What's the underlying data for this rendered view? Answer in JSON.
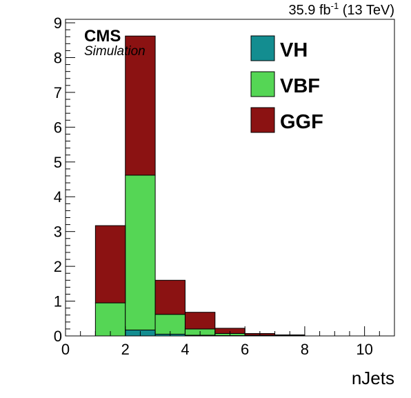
{
  "header": {
    "lumi_main": "35.9 fb",
    "lumi_sup": "-1",
    "lumi_tail": " (13 TeV)"
  },
  "labels": {
    "cms": "CMS",
    "simulation": "Simulation"
  },
  "colors": {
    "VH": "#138d90",
    "VBF": "#55d655",
    "GGF": "#8b1212",
    "frame": "#000000",
    "background": "#ffffff"
  },
  "chart_data": {
    "type": "bar",
    "stacked": true,
    "histogram": true,
    "xlabel": "nJets",
    "ylabel": "",
    "xlim": [
      0,
      11
    ],
    "ylim": [
      0,
      9.1
    ],
    "x_ticks": [
      0,
      2,
      4,
      6,
      8,
      10
    ],
    "y_ticks": [
      0,
      1,
      2,
      3,
      4,
      5,
      6,
      7,
      8,
      9
    ],
    "bin_edges": [
      0,
      1,
      2,
      3,
      4,
      5,
      6,
      7,
      8,
      9,
      10,
      11
    ],
    "grid": false,
    "legend_position": "top-right",
    "series": [
      {
        "name": "VH",
        "color": "#138d90",
        "values": [
          0,
          0,
          0.17,
          0.05,
          0.02,
          0.01,
          0,
          0,
          0,
          0,
          0
        ]
      },
      {
        "name": "VBF",
        "color": "#55d655",
        "values": [
          0,
          0.95,
          4.45,
          0.57,
          0.18,
          0.06,
          0.02,
          0.01,
          0,
          0,
          0
        ]
      },
      {
        "name": "GGF",
        "color": "#8b1212",
        "values": [
          0,
          2.22,
          4.0,
          0.98,
          0.48,
          0.15,
          0.05,
          0.02,
          0,
          0,
          0
        ]
      }
    ]
  }
}
